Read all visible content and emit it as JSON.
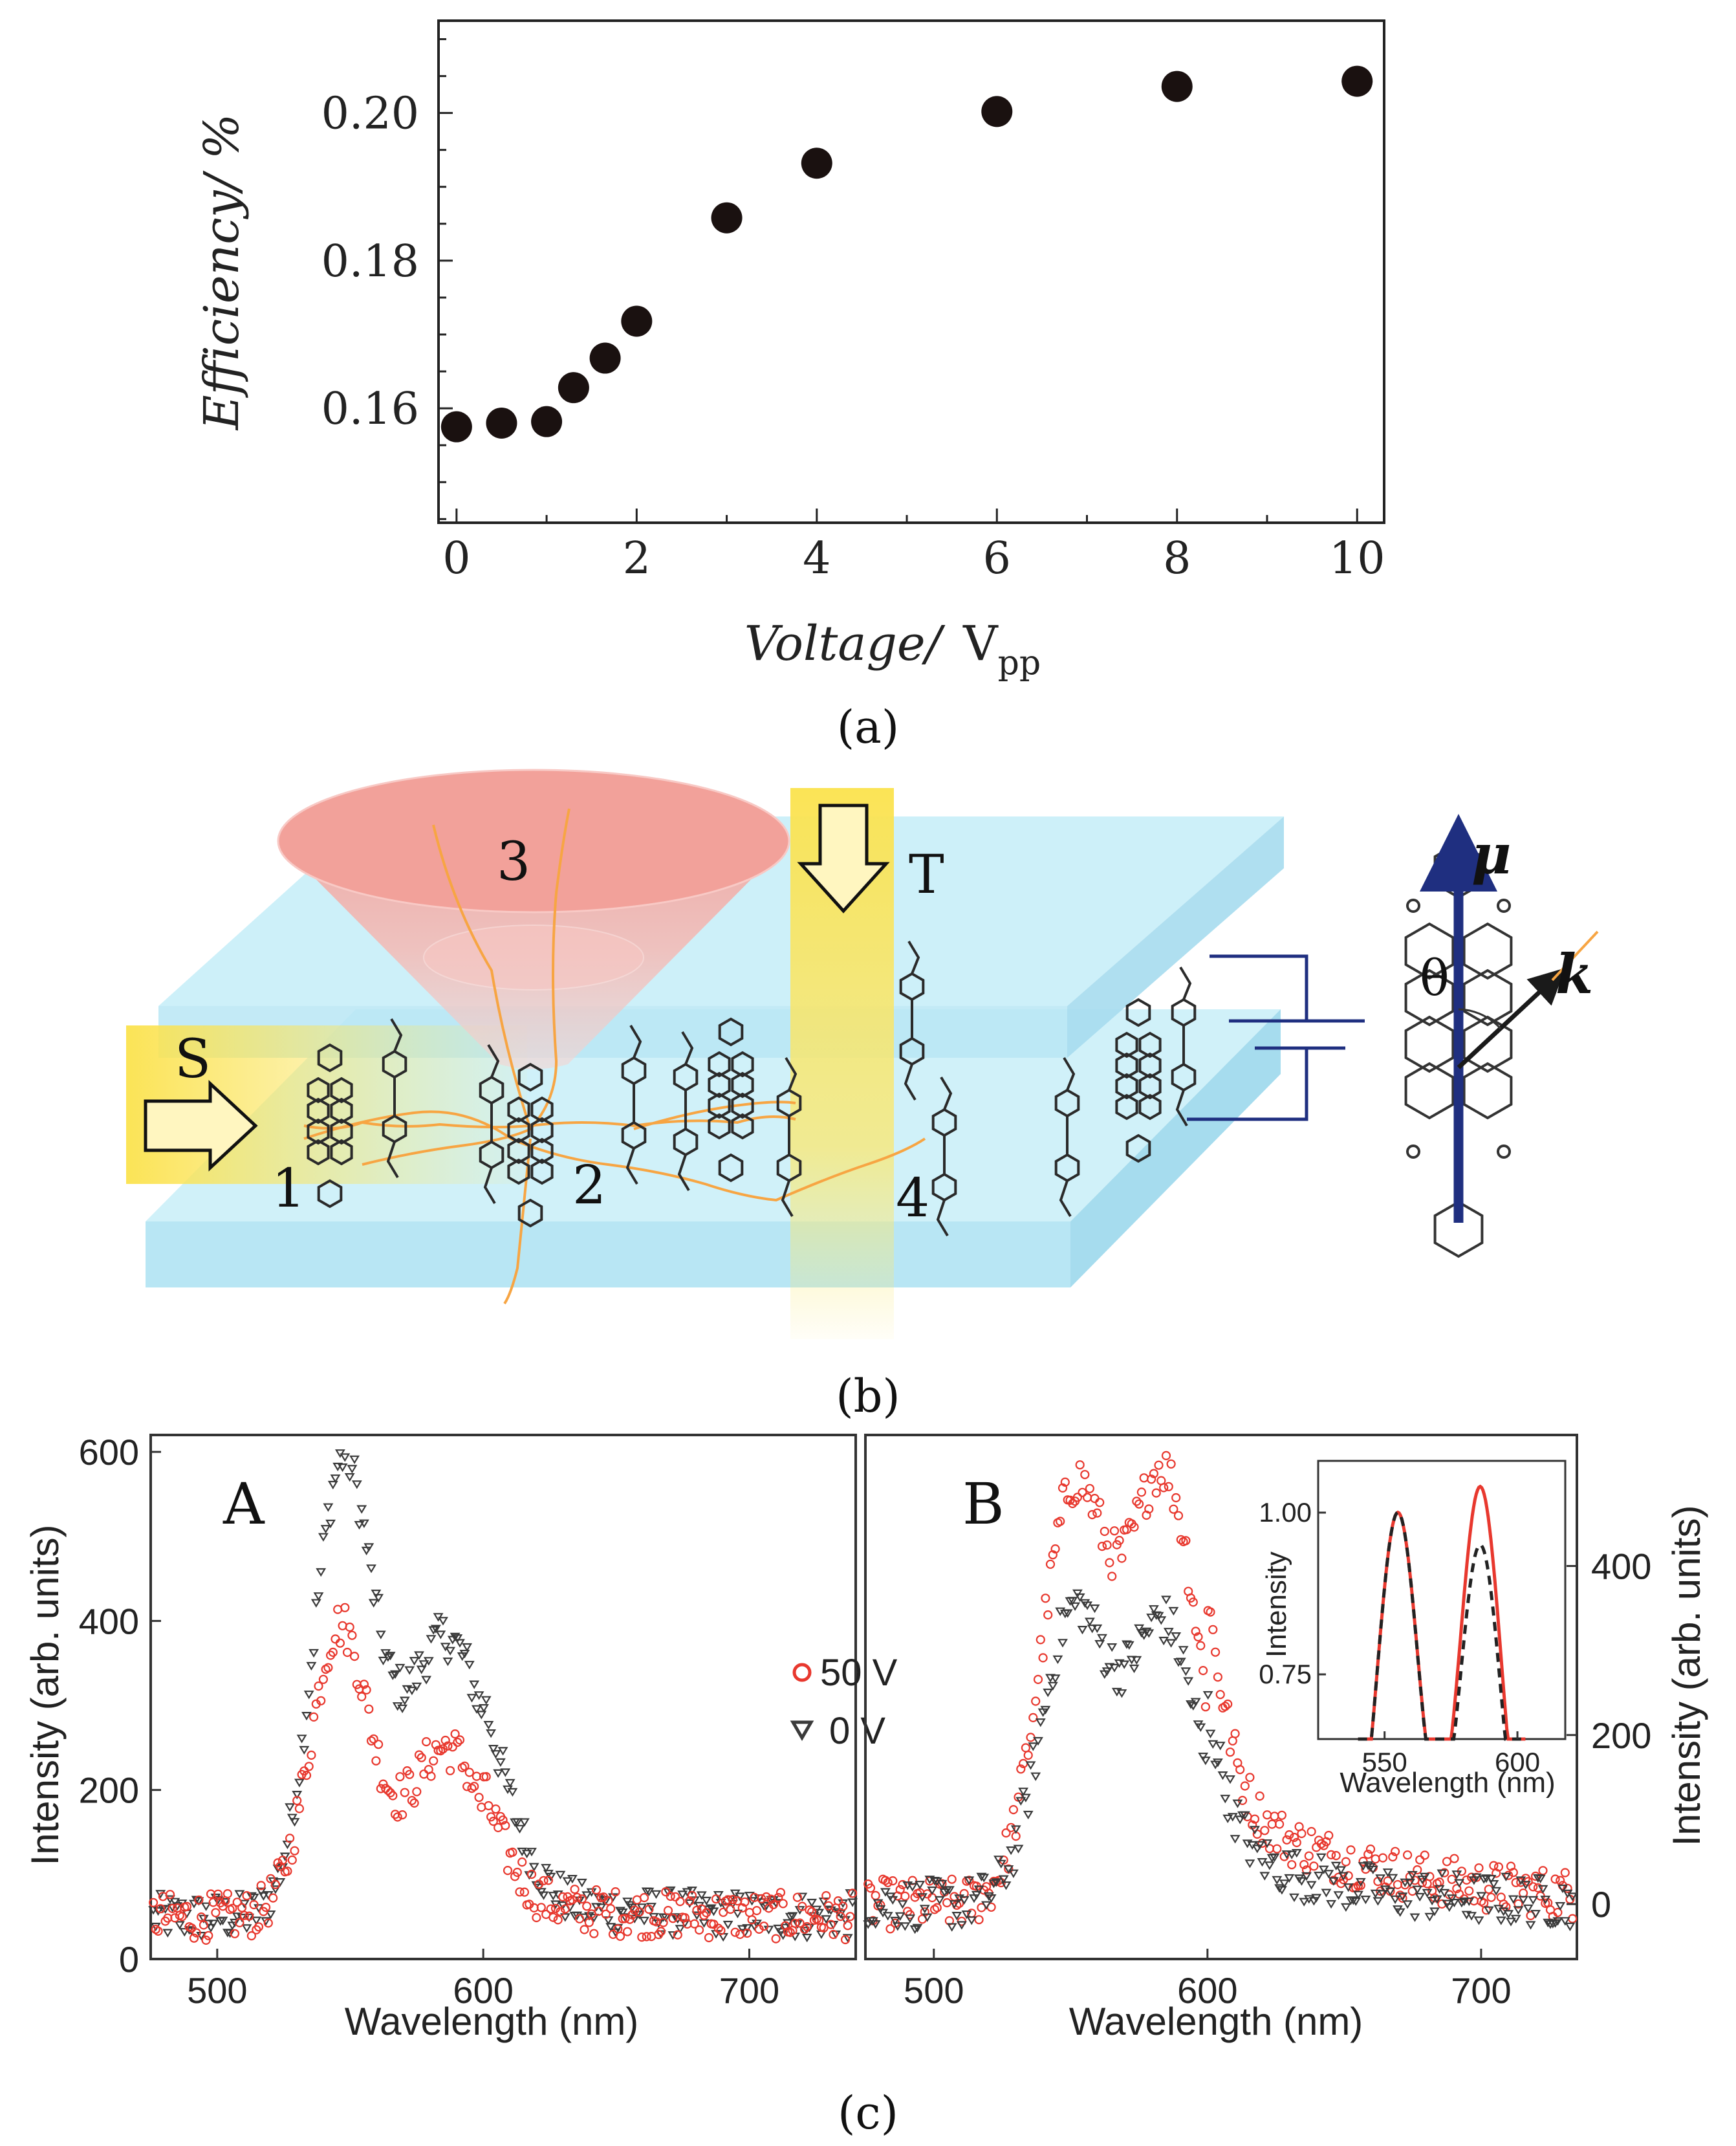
{
  "figure": {
    "caption_a": "(a)",
    "caption_b": "(b)",
    "caption_c": "(c)"
  },
  "panel_b": {
    "labels": {
      "s": "S",
      "t": "T",
      "n1": "1",
      "n2": "2",
      "n3": "3",
      "n4": "4",
      "mu": "μ",
      "k": "k",
      "theta": "θ"
    },
    "colors": {
      "slab": "#c8eef8",
      "beam": "#fbe870",
      "cone": "#f2a4a0",
      "ray": "#f7a543",
      "dipole": "#1f2f80"
    }
  },
  "chart_data": [
    {
      "type": "scatter",
      "id": "a",
      "title": "",
      "xlabel_main": "Voltage/",
      "xlabel_unit": "V",
      "xlabel_sub": "pp",
      "ylabel": "Efficiency/ %",
      "x": [
        0,
        0.5,
        1,
        1.3,
        1.65,
        2,
        3,
        4,
        6,
        8,
        10
      ],
      "y": [
        0.1575,
        0.158,
        0.1582,
        0.1628,
        0.1668,
        0.1718,
        0.1858,
        0.1932,
        0.2002,
        0.2036,
        0.2043
      ],
      "xlim": [
        -0.2,
        10.3
      ],
      "ylim": [
        0.1445,
        0.2125
      ],
      "xticks": [
        0,
        2,
        4,
        6,
        8,
        10
      ],
      "xtick_labels": [
        "0",
        "2",
        "4",
        "6",
        "8",
        "10"
      ],
      "yticks": [
        0.16,
        0.18,
        0.2
      ],
      "ytick_labels": [
        "0.16",
        "0.18",
        "0.20"
      ],
      "marker_color": "#1a1110"
    },
    {
      "type": "scatter",
      "id": "c-A",
      "panel_label": "A",
      "xlabel": "Wavelength (nm)",
      "ylabel": "Intensity (arb. units)",
      "xlim": [
        475,
        740
      ],
      "ylim": [
        0,
        620
      ],
      "xticks": [
        500,
        600,
        700
      ],
      "xtick_labels": [
        "500",
        "600",
        "700"
      ],
      "yticks": [
        0,
        200,
        400,
        600
      ],
      "ytick_labels": [
        "0",
        "200",
        "400",
        "600"
      ],
      "series": [
        {
          "name": "0 V",
          "marker": "triangle-down",
          "color": "#3a3a3a",
          "baseline": 50,
          "tail": 25,
          "peaks": [
            {
              "mu": 547,
              "sigma": 11,
              "amp": 520
            },
            {
              "mu": 586,
              "sigma": 17,
              "amp": 330
            }
          ],
          "tail_decay": 45
        },
        {
          "name": "50 V",
          "marker": "circle",
          "color": "#e8382e",
          "baseline": 50,
          "tail": 20,
          "peaks": [
            {
              "mu": 546,
              "sigma": 11,
              "amp": 340
            },
            {
              "mu": 586,
              "sigma": 15,
              "amp": 200
            }
          ],
          "tail_decay": 35
        }
      ],
      "legend": [
        {
          "label": "50 V",
          "symbol": "○"
        },
        {
          "label": "0 V",
          "symbol": "▿"
        }
      ]
    },
    {
      "type": "scatter",
      "id": "c-B",
      "panel_label": "B",
      "xlabel": "Wavelength (nm)",
      "ylabel": "Intensity (arb. units)",
      "xlim": [
        475,
        735
      ],
      "ylim": [
        -65,
        555
      ],
      "xticks": [
        500,
        600,
        700
      ],
      "xtick_labels": [
        "500",
        "600",
        "700"
      ],
      "yticks": [
        0,
        200,
        400
      ],
      "ytick_labels": [
        "0",
        "200",
        "400"
      ],
      "series": [
        {
          "name": "50 V",
          "marker": "circle",
          "color": "#e8382e",
          "peaks": [
            {
              "mu": 551,
              "sigma": 12,
              "amp": 480
            },
            {
              "mu": 584,
              "sigma": 13,
              "amp": 505
            }
          ],
          "tail_decay": 55,
          "tail": 130
        },
        {
          "name": "0 V",
          "marker": "triangle-down",
          "color": "#3a3a3a",
          "peaks": [
            {
              "mu": 551,
              "sigma": 12,
              "amp": 340
            },
            {
              "mu": 584,
              "sigma": 13,
              "amp": 330
            }
          ],
          "tail_decay": 40,
          "tail": 80
        }
      ],
      "inset": {
        "xlabel": "Wavelength (nm)",
        "ylabel": "Intensity",
        "xlim": [
          525,
          618
        ],
        "ylim": [
          0.65,
          1.08
        ],
        "xticks": [
          550,
          600
        ],
        "xtick_labels": [
          "550",
          "600"
        ],
        "yticks": [
          0.75,
          1.0
        ],
        "ytick_labels": [
          "0.75",
          "1.00"
        ],
        "series": [
          {
            "name": "50 V",
            "style": "solid",
            "color": "#e8382e",
            "peak2": 1.04
          },
          {
            "name": "0 V",
            "style": "dashed",
            "color": "#222222",
            "peak2": 0.95
          }
        ]
      }
    }
  ]
}
